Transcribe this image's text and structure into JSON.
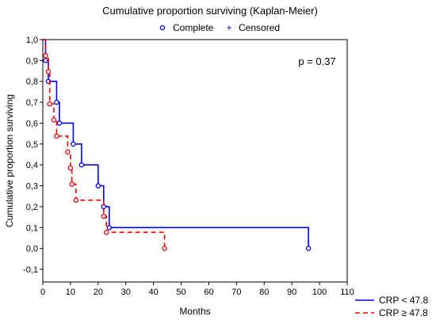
{
  "chart_data": {
    "type": "line",
    "title": "Cumulative proportion surviving (Kaplan-Meier)",
    "xlabel": "Months",
    "ylabel": "Cumulative proportion surviving",
    "xlim": [
      0,
      110
    ],
    "ylim": [
      -0.1,
      1.0
    ],
    "x_ticks": [
      "0",
      "10",
      "20",
      "30",
      "40",
      "50",
      "60",
      "70",
      "80",
      "90",
      "100",
      "110"
    ],
    "y_ticks": [
      "1,0",
      "0,9",
      "0,8",
      "0,7",
      "0,6",
      "0,5",
      "0,4",
      "0,3",
      "0,2",
      "0,1",
      "0,0",
      "-0,1"
    ],
    "y_tick_values": [
      1.0,
      0.9,
      0.8,
      0.7,
      0.6,
      0.5,
      0.4,
      0.3,
      0.2,
      0.1,
      0.0,
      -0.1
    ],
    "marker_legend": {
      "complete_label": "Complete",
      "censored_label": "Censored",
      "color": "#0000cc"
    },
    "annotation": "p = 0.37",
    "series": [
      {
        "name": "CRP < 47.8",
        "color": "#0000ee",
        "dash": false,
        "steps": [
          [
            0,
            1.0
          ],
          [
            1,
            0.9
          ],
          [
            2,
            0.8
          ],
          [
            5,
            0.7
          ],
          [
            6,
            0.6
          ],
          [
            11,
            0.5
          ],
          [
            14,
            0.4
          ],
          [
            20,
            0.3
          ],
          [
            22,
            0.2
          ],
          [
            24,
            0.1
          ],
          [
            96,
            0.0
          ]
        ],
        "events": [
          [
            1,
            0.9
          ],
          [
            2,
            0.8
          ],
          [
            5,
            0.7
          ],
          [
            6,
            0.6
          ],
          [
            11,
            0.5
          ],
          [
            14,
            0.4
          ],
          [
            20,
            0.3
          ],
          [
            22,
            0.2
          ],
          [
            24,
            0.1
          ],
          [
            96,
            0.0
          ]
        ]
      },
      {
        "name": "CRP ≥ 47.8",
        "color": "#ee0000",
        "dash": true,
        "steps": [
          [
            0,
            1.0
          ],
          [
            1,
            0.923
          ],
          [
            2,
            0.846
          ],
          [
            2.5,
            0.692
          ],
          [
            4,
            0.615
          ],
          [
            5,
            0.538
          ],
          [
            9,
            0.462
          ],
          [
            10,
            0.385
          ],
          [
            10.5,
            0.308
          ],
          [
            12,
            0.231
          ],
          [
            22,
            0.154
          ],
          [
            23,
            0.077
          ],
          [
            44,
            0.0
          ]
        ],
        "events": [
          [
            1,
            0.923
          ],
          [
            2,
            0.846
          ],
          [
            2.5,
            0.692
          ],
          [
            4,
            0.615
          ],
          [
            5,
            0.538
          ],
          [
            9,
            0.462
          ],
          [
            10,
            0.385
          ],
          [
            10.5,
            0.308
          ],
          [
            12,
            0.231
          ],
          [
            22,
            0.154
          ],
          [
            23,
            0.077
          ],
          [
            44,
            0.0
          ]
        ]
      }
    ]
  }
}
